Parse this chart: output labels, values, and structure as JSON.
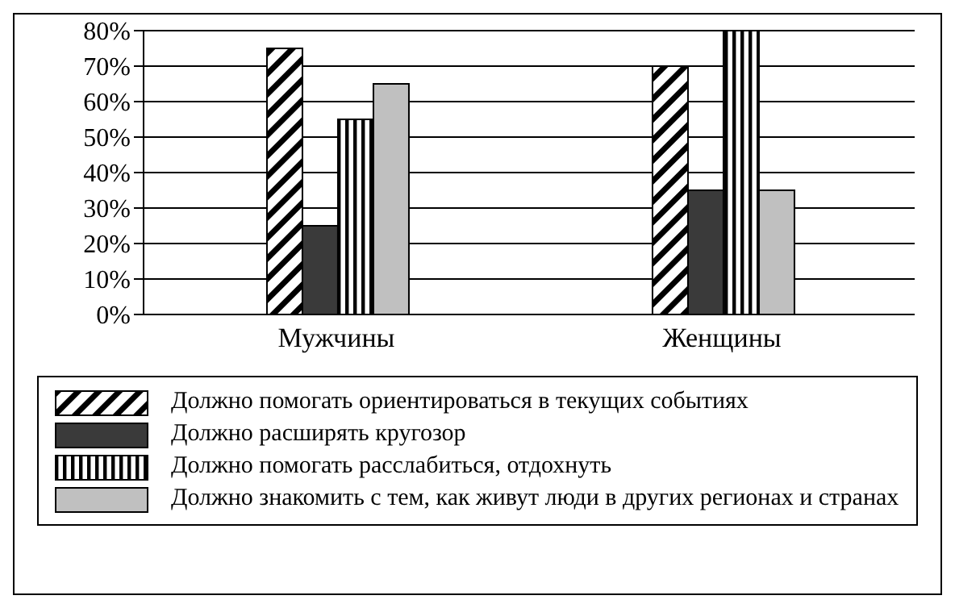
{
  "chart_data": {
    "type": "bar",
    "categories": [
      "Мужчины",
      "Женщины"
    ],
    "series": [
      {
        "name": "Должно помогать ориентироваться в текущих событиях",
        "color": "#000000",
        "values": [
          75,
          70
        ]
      },
      {
        "name": "Должно расширять кругозор",
        "color": "#3a3a3a",
        "values": [
          25,
          35
        ]
      },
      {
        "name": "Должно помогать расслабиться, отдохнуть",
        "color": "#000000",
        "values": [
          55,
          80
        ]
      },
      {
        "name": "Должно знакомить с тем, как живут люди в других регионах и странах",
        "color": "#c0c0c0",
        "values": [
          65,
          35
        ]
      }
    ],
    "ylim": [
      0,
      80
    ],
    "yticks": [
      {
        "value": 0,
        "label": "0%"
      },
      {
        "value": 10,
        "label": "10%"
      },
      {
        "value": 20,
        "label": "20%"
      },
      {
        "value": 30,
        "label": "30%"
      },
      {
        "value": 40,
        "label": "40%"
      },
      {
        "value": 50,
        "label": "50%"
      },
      {
        "value": 60,
        "label": "60%"
      },
      {
        "value": 70,
        "label": "70%"
      },
      {
        "value": 80,
        "label": "80%"
      }
    ],
    "grid": "y",
    "legend": "bottom"
  }
}
